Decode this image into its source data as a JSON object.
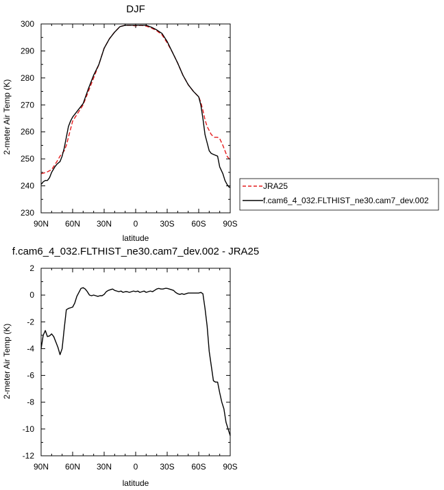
{
  "chart_data": [
    {
      "type": "line",
      "title": "DJF",
      "xlabel": "latitude",
      "ylabel": "2-meter Air Temp (K)",
      "xlim": [
        90,
        -90
      ],
      "ylim": [
        230,
        300
      ],
      "xticks": [
        90,
        60,
        30,
        0,
        -30,
        -60,
        -90
      ],
      "xtick_labels": [
        "90N",
        "60N",
        "30N",
        "0",
        "30S",
        "60S",
        "90S"
      ],
      "yticks": [
        230,
        240,
        250,
        260,
        270,
        280,
        290,
        300
      ],
      "ytick_labels": [
        "230",
        "240",
        "250",
        "260",
        "270",
        "280",
        "290",
        "300"
      ],
      "grid": false,
      "legend_position": "right, outside plot",
      "series": [
        {
          "name": "JRA25",
          "style": "dashed",
          "color": "#e41a1c",
          "x": [
            90,
            85,
            80,
            75,
            72,
            70,
            68,
            66,
            64,
            62,
            60,
            55,
            50,
            45,
            40,
            35,
            30,
            25,
            20,
            15,
            10,
            5,
            0,
            -5,
            -10,
            -15,
            -20,
            -25,
            -30,
            -35,
            -40,
            -45,
            -50,
            -55,
            -60,
            -62,
            -64,
            -66,
            -68,
            -70,
            -72,
            -75,
            -78,
            -80,
            -83,
            -85,
            -87,
            -89,
            -90
          ],
          "y": [
            244.5,
            245,
            246,
            249,
            251,
            252,
            253,
            255,
            258,
            261,
            264,
            267,
            270,
            275,
            280,
            285,
            291,
            294.5,
            297,
            299,
            299.5,
            299.5,
            299.3,
            299.5,
            299.2,
            298.5,
            297.5,
            296,
            293,
            289.5,
            285.5,
            281,
            277.5,
            275,
            273,
            271,
            268,
            264.5,
            262,
            260.5,
            259,
            258,
            258,
            257.5,
            255,
            253,
            251,
            250,
            249.5
          ]
        },
        {
          "name": "f.cam6_4_032.FLTHIST_ne30.cam7_dev.002",
          "style": "solid",
          "color": "#000000",
          "x": [
            90,
            88,
            86,
            84,
            82,
            80,
            77,
            75,
            72,
            70,
            68,
            66,
            64,
            62,
            60,
            55,
            50,
            45,
            40,
            35,
            30,
            25,
            20,
            15,
            10,
            5,
            0,
            -5,
            -10,
            -15,
            -20,
            -25,
            -30,
            -35,
            -40,
            -45,
            -50,
            -55,
            -60,
            -62,
            -64,
            -66,
            -68,
            -70,
            -72,
            -75,
            -78,
            -80,
            -83,
            -85,
            -87,
            -89,
            -90
          ],
          "y": [
            240.5,
            241.5,
            242,
            242,
            243,
            245,
            247,
            248,
            249,
            251,
            254,
            258,
            262,
            264,
            265.5,
            268,
            270.5,
            276,
            281,
            285,
            291,
            294.5,
            297,
            299,
            299.5,
            299.5,
            299.5,
            299.5,
            299.5,
            298.8,
            297.8,
            296.5,
            293.5,
            289.5,
            285.5,
            281,
            277.5,
            275,
            273,
            270,
            265,
            259,
            256,
            253,
            252,
            251.5,
            251,
            247,
            244.5,
            242,
            240.5,
            239.5,
            239.5
          ]
        }
      ]
    },
    {
      "type": "line",
      "title": "f.cam6_4_032.FLTHIST_ne30.cam7_dev.002 - JRA25",
      "xlabel": "latitude",
      "ylabel": "2-meter Air Temp (K)",
      "xlim": [
        90,
        -90
      ],
      "ylim": [
        -12,
        2
      ],
      "xticks": [
        90,
        60,
        30,
        0,
        -30,
        -60,
        -90
      ],
      "xtick_labels": [
        "90N",
        "60N",
        "30N",
        "0",
        "30S",
        "60S",
        "90S"
      ],
      "yticks": [
        -12,
        -10,
        -8,
        -6,
        -4,
        -2,
        0,
        2
      ],
      "ytick_labels": [
        "-12",
        "-10",
        "-8",
        "-6",
        "-4",
        "-2",
        "0",
        "2"
      ],
      "grid": false,
      "series": [
        {
          "style": "solid",
          "color": "#000000",
          "x": [
            90,
            88,
            86,
            84,
            82,
            80,
            78,
            76,
            74,
            72,
            70,
            68,
            66,
            64,
            62,
            60,
            58,
            56,
            54,
            52,
            50,
            48,
            46,
            44,
            42,
            40,
            38,
            36,
            34,
            32,
            30,
            28,
            26,
            24,
            22,
            20,
            18,
            16,
            14,
            12,
            10,
            8,
            6,
            4,
            2,
            0,
            -2,
            -4,
            -6,
            -8,
            -10,
            -12,
            -14,
            -16,
            -18,
            -20,
            -22,
            -24,
            -26,
            -28,
            -30,
            -32,
            -34,
            -36,
            -38,
            -40,
            -42,
            -44,
            -46,
            -48,
            -50,
            -52,
            -54,
            -56,
            -58,
            -60,
            -62,
            -64,
            -66,
            -68,
            -70,
            -72,
            -74,
            -76,
            -78,
            -80,
            -82,
            -84,
            -86,
            -88,
            -90
          ],
          "y": [
            -4.0,
            -3.0,
            -2.65,
            -3.1,
            -3.05,
            -2.9,
            -3.1,
            -3.5,
            -3.9,
            -4.45,
            -4.0,
            -2.5,
            -1.1,
            -1.0,
            -0.95,
            -0.9,
            -0.6,
            -0.1,
            0.2,
            0.5,
            0.55,
            0.45,
            0.25,
            0.0,
            -0.05,
            0.0,
            -0.05,
            -0.1,
            -0.05,
            -0.05,
            0.05,
            0.25,
            0.35,
            0.4,
            0.45,
            0.35,
            0.3,
            0.25,
            0.3,
            0.2,
            0.25,
            0.25,
            0.2,
            0.25,
            0.3,
            0.25,
            0.3,
            0.2,
            0.25,
            0.3,
            0.2,
            0.25,
            0.3,
            0.25,
            0.35,
            0.45,
            0.5,
            0.45,
            0.45,
            0.5,
            0.5,
            0.45,
            0.4,
            0.35,
            0.2,
            0.1,
            0.05,
            0.1,
            0.05,
            0.1,
            0.15,
            0.15,
            0.15,
            0.15,
            0.15,
            0.15,
            0.2,
            0.1,
            -1.0,
            -2.3,
            -4.2,
            -5.3,
            -6.4,
            -6.5,
            -6.5,
            -7.3,
            -8.0,
            -8.5,
            -9.5,
            -10.0,
            -10.5
          ]
        }
      ]
    }
  ]
}
